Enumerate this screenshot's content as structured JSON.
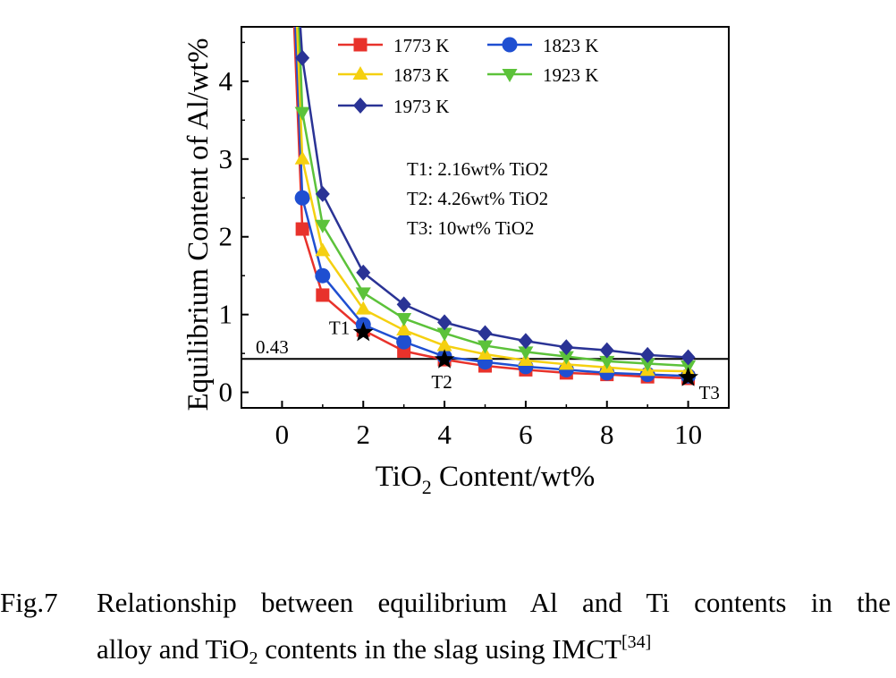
{
  "chart_data": {
    "type": "line",
    "x_label_parts": [
      "TiO",
      "2",
      " Content/wt%"
    ],
    "ylabel": "Equilibrium Content of Al/wt%",
    "xlim": [
      -1,
      11
    ],
    "ylim": [
      -0.2,
      4.7
    ],
    "x_ticks": [
      0,
      2,
      4,
      6,
      8,
      10
    ],
    "y_ticks": [
      0,
      1,
      2,
      3,
      4
    ],
    "legend_position": "top-left",
    "series": [
      {
        "name": "1773 K",
        "color": "#e8322b",
        "marker": "square",
        "x": [
          0.3,
          0.5,
          1,
          2,
          3,
          4,
          5,
          6,
          7,
          8,
          9,
          10
        ],
        "y": [
          4.7,
          2.1,
          1.25,
          0.8,
          0.53,
          0.42,
          0.34,
          0.29,
          0.25,
          0.23,
          0.2,
          0.18
        ]
      },
      {
        "name": "1823 K",
        "color": "#1f4fd1",
        "marker": "circle",
        "x": [
          0.33,
          0.5,
          1,
          2,
          3,
          4,
          5,
          6,
          7,
          8,
          9,
          10
        ],
        "y": [
          4.7,
          2.5,
          1.5,
          0.87,
          0.65,
          0.46,
          0.39,
          0.33,
          0.29,
          0.25,
          0.23,
          0.21
        ]
      },
      {
        "name": "1873 K",
        "color": "#f5d010",
        "marker": "triangle-up",
        "x": [
          0.37,
          0.5,
          1,
          2,
          3,
          4,
          5,
          6,
          7,
          8,
          9,
          10
        ],
        "y": [
          4.7,
          3.0,
          1.82,
          1.07,
          0.8,
          0.6,
          0.49,
          0.41,
          0.36,
          0.32,
          0.28,
          0.27
        ]
      },
      {
        "name": "1923 K",
        "color": "#5cc23a",
        "marker": "triangle-down",
        "x": [
          0.42,
          0.5,
          1,
          2,
          3,
          4,
          5,
          6,
          7,
          8,
          9,
          10
        ],
        "y": [
          4.7,
          3.6,
          2.15,
          1.28,
          0.95,
          0.76,
          0.6,
          0.52,
          0.46,
          0.4,
          0.37,
          0.34
        ]
      },
      {
        "name": "1973 K",
        "color": "#2a3395",
        "marker": "diamond",
        "x": [
          0.45,
          0.5,
          1,
          2,
          3,
          4,
          5,
          6,
          7,
          8,
          9,
          10
        ],
        "y": [
          4.7,
          4.3,
          2.55,
          1.54,
          1.13,
          0.9,
          0.76,
          0.66,
          0.58,
          0.54,
          0.48,
          0.45
        ]
      }
    ],
    "hline": {
      "y": 0.43,
      "label": "0.43"
    },
    "markers": [
      {
        "label": "T1",
        "x": 2.0,
        "y": 0.77,
        "label_pos": "above-left"
      },
      {
        "label": "T2",
        "x": 4.0,
        "y": 0.42,
        "label_pos": "below"
      },
      {
        "label": "T3",
        "x": 10.0,
        "y": 0.19,
        "label_pos": "right"
      }
    ],
    "annotations": [
      "T1: 2.16wt% TiO2",
      "T2: 4.26wt% TiO2",
      "T3: 10wt% TiO2"
    ]
  },
  "caption": {
    "figure_label": "Fig.7",
    "line1": "Relationship between equilibrium Al and Ti contents in the",
    "line2_a": "alloy and TiO",
    "line2_sub": "2",
    "line2_b": " contents in the slag using IMCT",
    "line2_sup": "[34]"
  }
}
